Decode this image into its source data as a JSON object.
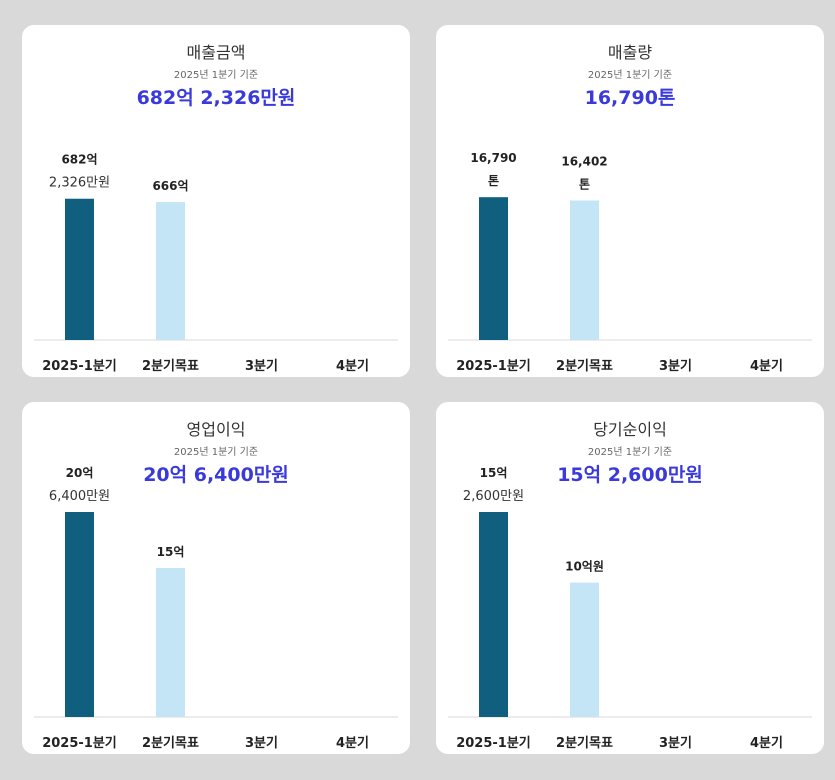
{
  "colors": {
    "actual": "#115f7f",
    "target": "#c3e5f5",
    "headline": "#3a3adb",
    "axis": "#d8d8d8"
  },
  "chart_data": [
    {
      "type": "bar",
      "title": "매출금액",
      "subtitle": "2025년 1분기 기준",
      "headline": "682억 2,326만원",
      "categories": [
        "2025-1분기",
        "2분기목표",
        "3분기",
        "4분기"
      ],
      "values": [
        682.2326,
        666,
        null,
        null
      ],
      "unit": "억원",
      "ylim": [
        0,
        990
      ],
      "data_labels": [
        [
          "682억",
          "2,326만원"
        ],
        [
          "666억"
        ],
        [],
        []
      ],
      "grid": false,
      "legend": "none"
    },
    {
      "type": "bar",
      "title": "매출량",
      "subtitle": "2025년 1분기 기준",
      "headline": "16,790톤",
      "categories": [
        "2025-1분기",
        "2분기목표",
        "3분기",
        "4분기"
      ],
      "values": [
        16790,
        16402,
        null,
        null
      ],
      "unit": "톤",
      "ylim": [
        0,
        24100
      ],
      "data_labels": [
        [
          "16,790",
          "톤"
        ],
        [
          "16,402",
          "톤"
        ],
        [],
        []
      ],
      "grid": false,
      "legend": "none"
    },
    {
      "type": "bar",
      "title": "영업이익",
      "subtitle": "2025년 1분기 기준",
      "headline": "20억 6,400만원",
      "categories": [
        "2025-1분기",
        "2분기목표",
        "3분기",
        "4분기"
      ],
      "values": [
        20.64,
        15,
        null,
        null
      ],
      "unit": "억원",
      "ylim": [
        0,
        20.64
      ],
      "data_labels": [
        [
          "20억",
          "6,400만원"
        ],
        [
          "15억"
        ],
        [],
        []
      ],
      "grid": false,
      "legend": "none"
    },
    {
      "type": "bar",
      "title": "당기순이익",
      "subtitle": "2025년 1분기 기준",
      "headline": "15억 2,600만원",
      "categories": [
        "2025-1분기",
        "2분기목표",
        "3분기",
        "4분기"
      ],
      "values": [
        15.26,
        10,
        null,
        null
      ],
      "unit": "억원",
      "ylim": [
        0,
        15.26
      ],
      "data_labels": [
        [
          "15억",
          "2,600만원"
        ],
        [
          "10억원"
        ],
        [],
        []
      ],
      "grid": false,
      "legend": "none"
    }
  ]
}
